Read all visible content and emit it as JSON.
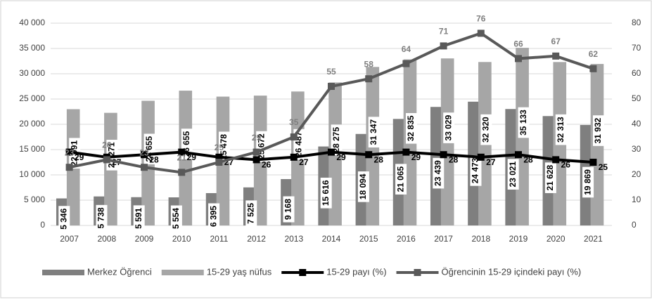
{
  "chart_data": {
    "type": "bar_line",
    "categories": [
      "2007",
      "2008",
      "2009",
      "2010",
      "2011",
      "2012",
      "2013",
      "2014",
      "2015",
      "2016",
      "2017",
      "2018",
      "2019",
      "2020",
      "2021"
    ],
    "ylim": [
      0,
      40000
    ],
    "yticks": [
      0,
      {
        "value": 5000,
        "label": "5 000"
      },
      {
        "value": 10000,
        "label": "10 000"
      },
      {
        "value": 15000,
        "label": "15 000"
      },
      {
        "value": 20000,
        "label": "20 000"
      },
      {
        "value": 25000,
        "label": "25 000"
      },
      {
        "value": 30000,
        "label": "30 000"
      },
      {
        "value": 35000,
        "label": "35 000"
      },
      {
        "value": 40000,
        "label": "40 000"
      }
    ],
    "y2lim": [
      0,
      80
    ],
    "y2ticks": [
      0,
      10,
      20,
      30,
      40,
      50,
      60,
      70,
      80
    ],
    "grid": true,
    "legend": "bottom",
    "series": [
      {
        "name": "Merkez Öğrenci",
        "kind": "bar",
        "color": "#7f7f7f",
        "values": [
          5346,
          5738,
          5591,
          5554,
          6395,
          7525,
          9168,
          15616,
          18094,
          21065,
          23439,
          24473,
          23021,
          21628,
          19869
        ],
        "value_labels": [
          "5 346",
          "5 738",
          "5 591",
          "5 554",
          "6 395",
          "7 525",
          "9 168",
          "15 616",
          "18 094",
          "21 065",
          "23 439",
          "24 473",
          "23 021",
          "21 628",
          "19 869"
        ]
      },
      {
        "name": "15-29 yaş nüfus",
        "kind": "bar",
        "color": "#a6a6a6",
        "values": [
          22991,
          22271,
          24655,
          26655,
          25478,
          25672,
          26487,
          28275,
          31347,
          32835,
          33029,
          32320,
          35133,
          32313,
          31932
        ],
        "value_labels": [
          "22 991",
          "22 271",
          "24 655",
          "26 655",
          "25 478",
          "25 672",
          "26 487",
          "28 275",
          "31 347",
          "32 835",
          "33 029",
          "32 320",
          "35 133",
          "32 313",
          "31 932"
        ]
      },
      {
        "name": "15-29 payı (%)",
        "kind": "line",
        "axis": "y2",
        "color": "#000000",
        "values": [
          29,
          27,
          28,
          29,
          27,
          26,
          27,
          29,
          28,
          29,
          28,
          27,
          28,
          26,
          25
        ]
      },
      {
        "name": "Öğrencinin 15-29 içindeki payı (%)",
        "kind": "line",
        "axis": "y2",
        "color": "#595959",
        "values": [
          23,
          26,
          23,
          21,
          25,
          29,
          35,
          55,
          58,
          64,
          71,
          76,
          66,
          67,
          62
        ]
      }
    ]
  }
}
